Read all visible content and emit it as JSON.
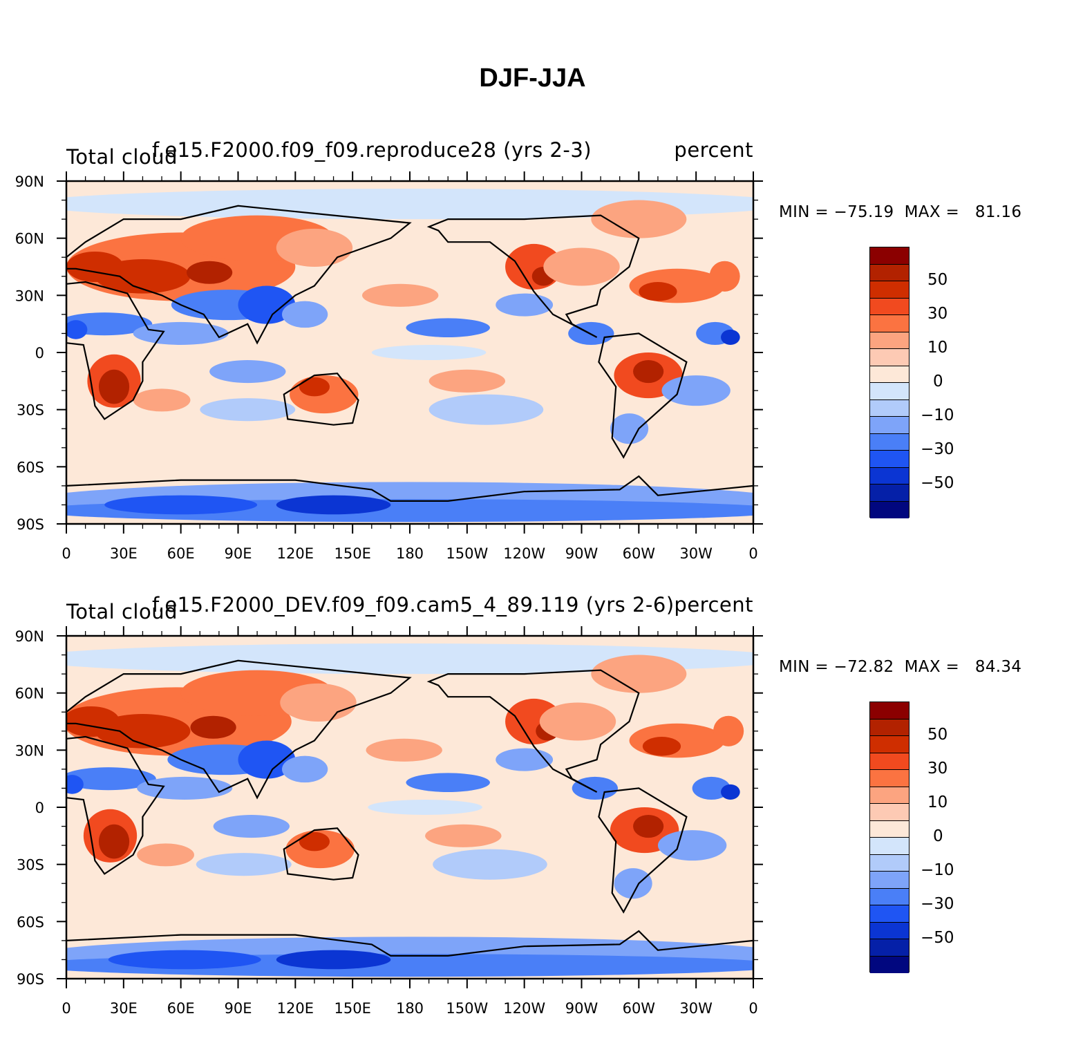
{
  "title": "DJF-JJA",
  "panels": [
    {
      "variable": "Total cloud",
      "case": "f.e15.F2000.f09_f09.reproduce28 (yrs 2-3)",
      "units": "percent",
      "stats": "MIN = −75.19  MAX =   81.16"
    },
    {
      "variable": "Total cloud",
      "case": "f.e15.F2000_DEV.f09_f09.cam5_4_89.119 (yrs 2-6)",
      "units": "percent",
      "stats": "MIN = −72.82  MAX =   84.34"
    }
  ],
  "map": {
    "x_ticks": [
      "0",
      "30E",
      "60E",
      "90E",
      "120E",
      "150E",
      "180",
      "150W",
      "120W",
      "90W",
      "60W",
      "30W",
      "0"
    ],
    "y_ticks": [
      "90N",
      "60N",
      "30N",
      "0",
      "30S",
      "60S",
      "90S"
    ],
    "projection": "cylindrical-equidistant",
    "central_longitude": 180,
    "lon_range": [
      0,
      360
    ],
    "lat_range": [
      -90,
      90
    ]
  },
  "colorbar": {
    "colors": [
      "#8b0000",
      "#b22200",
      "#cf2e00",
      "#f14a1f",
      "#fb7341",
      "#fca480",
      "#fdcab4",
      "#fde8d8",
      "#d3e5fb",
      "#b1cbfa",
      "#7ea4f9",
      "#4a7ff7",
      "#1f55f3",
      "#0b35d3",
      "#0520a8",
      "#01077f"
    ],
    "labels": [
      "50",
      "30",
      "10",
      "0",
      "−10",
      "−30",
      "−50"
    ]
  }
}
